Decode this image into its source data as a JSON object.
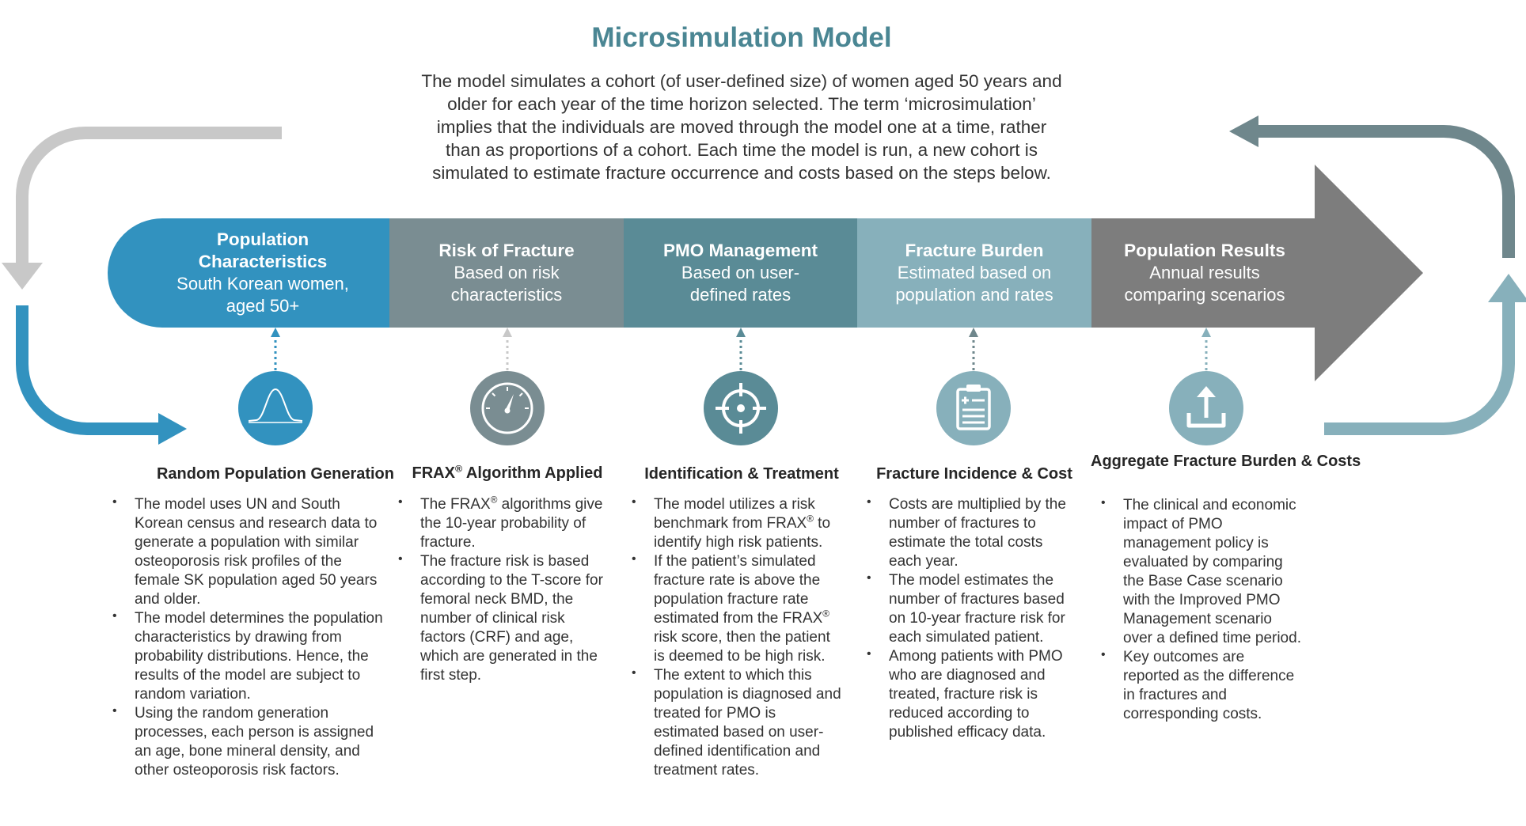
{
  "title": "Microsimulation Model",
  "intro_lines": [
    "The model simulates a cohort (of user-defined size) of women aged 50 years and",
    "older for each year of the time horizon selected. The term ‘microsimulation’",
    "implies that the individuals are moved through the model one at a time, rather",
    "than as proportions of a cohort. Each time the model is run, a new cohort is",
    "simulated to estimate fracture occurrence and costs based on the steps below."
  ],
  "colors": {
    "title": "#4a8693",
    "stage_1": "#3292bf",
    "stage_2": "#7a8d92",
    "stage_3": "#5a8b96",
    "stage_4": "#87b0bb",
    "stage_5": "#7d7d7d",
    "arrow_left_top": "#c8c8c8",
    "arrow_left_bottom": "#3292bf",
    "arrow_right_top": "#6f878c",
    "arrow_right_bottom": "#87b0bb"
  },
  "stages": [
    {
      "title_lines": [
        "Population",
        "Characteristics"
      ],
      "sub_lines": [
        "South Korean women,",
        "aged 50+"
      ]
    },
    {
      "title_lines": [
        "Risk of Fracture"
      ],
      "sub_lines": [
        "Based on risk",
        "characteristics"
      ]
    },
    {
      "title_lines": [
        "PMO Management"
      ],
      "sub_lines": [
        "Based on user-",
        "defined rates"
      ]
    },
    {
      "title_lines": [
        "Fracture Burden"
      ],
      "sub_lines": [
        "Estimated based on",
        "population and rates"
      ]
    },
    {
      "title_lines": [
        "Population Results"
      ],
      "sub_lines": [
        "Annual results",
        "comparing scenarios"
      ]
    }
  ],
  "steps": [
    {
      "icon": "bell-curve-icon",
      "title_lines": [
        [
          "Random Population Generation"
        ]
      ],
      "bullets": [
        [
          [
            "The model uses UN and South"
          ],
          [
            "Korean census and research data to"
          ],
          [
            "generate a population with similar"
          ],
          [
            "osteoporosis risk profiles of the"
          ],
          [
            "female SK population aged 50 years"
          ],
          [
            "and older."
          ]
        ],
        [
          [
            "The model determines the population"
          ],
          [
            "characteristics by drawing from"
          ],
          [
            "probability distributions. Hence, the"
          ],
          [
            "results of the model are subject to"
          ],
          [
            "random variation."
          ]
        ],
        [
          [
            "Using the random generation"
          ],
          [
            "processes, each person is assigned"
          ],
          [
            "an age, bone mineral density, and"
          ],
          [
            "other osteoporosis risk factors."
          ]
        ]
      ]
    },
    {
      "icon": "gauge-icon",
      "title_lines": [
        [
          "FRAX",
          {
            "sup": "®"
          },
          " Algorithm Applied"
        ]
      ],
      "bullets": [
        [
          [
            "The FRAX",
            {
              "sup": "®"
            },
            " algorithms give"
          ],
          [
            "the 10-year probability of"
          ],
          [
            "fracture."
          ]
        ],
        [
          [
            "The fracture risk is based"
          ],
          [
            "according to the T-score for"
          ],
          [
            "femoral neck BMD, the"
          ],
          [
            "number of clinical risk"
          ],
          [
            "factors (CRF) and age,"
          ],
          [
            "which are generated in the"
          ],
          [
            "first step."
          ]
        ]
      ]
    },
    {
      "icon": "crosshair-icon",
      "title_lines": [
        [
          "Identification & Treatment"
        ]
      ],
      "bullets": [
        [
          [
            "The model utilizes a risk"
          ],
          [
            "benchmark from FRAX",
            {
              "sup": "®"
            },
            " to"
          ],
          [
            "identify high risk patients."
          ]
        ],
        [
          [
            "If the patient’s simulated"
          ],
          [
            "fracture rate is above the"
          ],
          [
            "population fracture rate"
          ],
          [
            "estimated from the FRAX",
            {
              "sup": "®"
            }
          ],
          [
            "risk score, then the patient"
          ],
          [
            "is deemed to be high risk."
          ]
        ],
        [
          [
            "The extent to which this"
          ],
          [
            "population is diagnosed and"
          ],
          [
            "treated for PMO is"
          ],
          [
            "estimated based on user-"
          ],
          [
            "defined identification and"
          ],
          [
            "treatment rates."
          ]
        ]
      ]
    },
    {
      "icon": "clipboard-icon",
      "title_lines": [
        [
          "Fracture Incidence & Cost"
        ]
      ],
      "bullets": [
        [
          [
            "Costs are multiplied by the"
          ],
          [
            "number of fractures to"
          ],
          [
            "estimate the total costs"
          ],
          [
            "each year."
          ]
        ],
        [
          [
            "The model estimates the"
          ],
          [
            "number of fractures based"
          ],
          [
            "on 10-year fracture risk for"
          ],
          [
            "each simulated patient."
          ]
        ],
        [
          [
            "Among patients with PMO"
          ],
          [
            "who are diagnosed and"
          ],
          [
            "treated, fracture risk is"
          ],
          [
            "reduced according to"
          ],
          [
            "published efficacy data."
          ]
        ]
      ]
    },
    {
      "icon": "upload-icon",
      "title_lines": [
        [
          "Aggregate Fracture"
        ],
        [
          "Burden & Costs"
        ]
      ],
      "bullets": [
        [
          [
            "The clinical and economic"
          ],
          [
            "impact of PMO"
          ],
          [
            "management policy is"
          ],
          [
            "evaluated by comparing"
          ],
          [
            "the Base Case scenario"
          ],
          [
            "with the Improved PMO"
          ],
          [
            "Management scenario"
          ],
          [
            "over a defined time period."
          ]
        ],
        [
          [
            "Key outcomes are"
          ],
          [
            "reported as the difference"
          ],
          [
            "in fractures and"
          ],
          [
            "corresponding costs."
          ]
        ]
      ]
    }
  ]
}
